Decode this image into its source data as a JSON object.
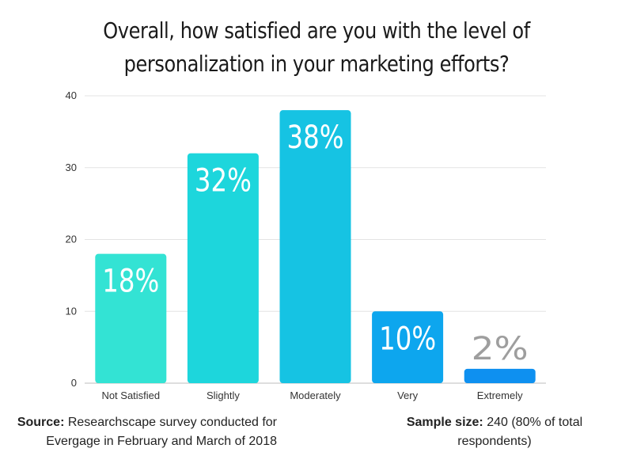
{
  "chart_data": {
    "type": "bar",
    "title": "Overall, how satisfied are you with the level of personalization in your marketing efforts?",
    "categories": [
      "Not Satisfied",
      "Slightly",
      "Moderately",
      "Very",
      "Extremely"
    ],
    "values": [
      18,
      32,
      38,
      10,
      2
    ],
    "data_labels": [
      "18%",
      "32%",
      "38%",
      "10%",
      "2%"
    ],
    "bar_colors": [
      "#33e3d4",
      "#1dd6dc",
      "#16c3e3",
      "#0da6ee",
      "#0e90f0"
    ],
    "label_colors": [
      "#ffffff",
      "#ffffff",
      "#ffffff",
      "#ffffff",
      "#9e9e9e"
    ],
    "ylim": [
      0,
      40
    ],
    "yticks": [
      0,
      10,
      20,
      30,
      40
    ],
    "grid": true,
    "xlabel": "",
    "ylabel": ""
  },
  "footer": {
    "source_label": "Source:",
    "source_text": " Researchscape survey conducted for Evergage in February and March of 2018",
    "sample_label": "Sample size:",
    "sample_text": " 240 (80% of total respondents)"
  }
}
